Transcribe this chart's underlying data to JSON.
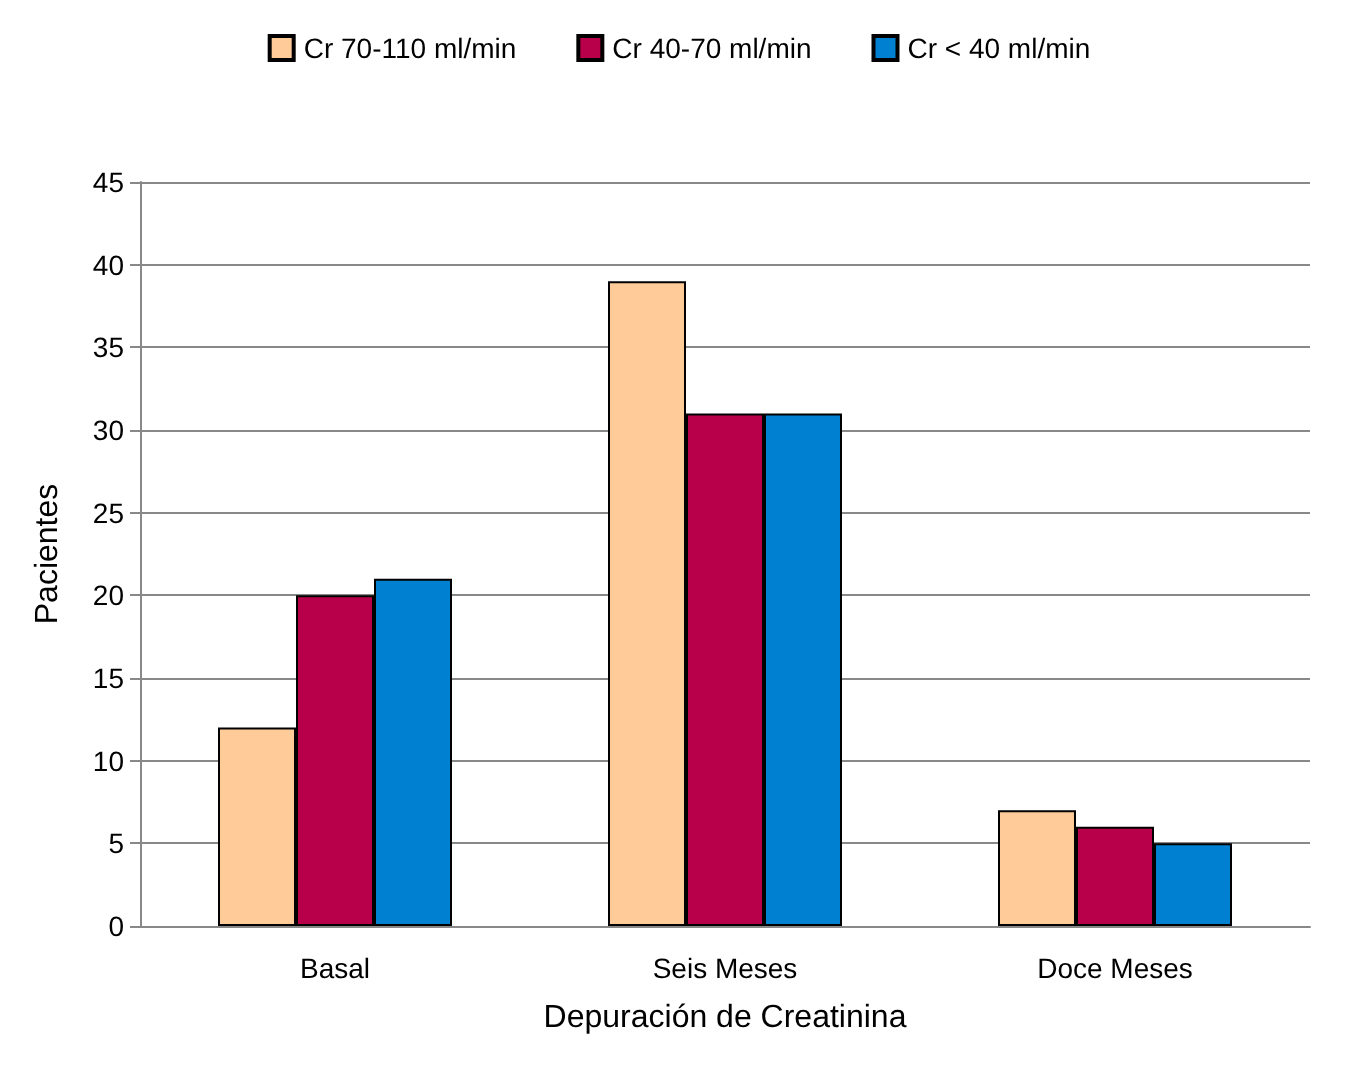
{
  "chart_data": {
    "type": "bar",
    "xlabel": "Depuración de Creatinina",
    "ylabel": "Pacientes",
    "categories": [
      "Basal",
      "Seis Meses",
      "Doce Meses"
    ],
    "series": [
      {
        "name": "Cr 70-110 ml/min",
        "color": "#ffcc99",
        "values": [
          12,
          39,
          7
        ]
      },
      {
        "name": "Cr 40-70 ml/min",
        "color": "#b8004a",
        "values": [
          20,
          31,
          6
        ]
      },
      {
        "name": "Cr < 40 ml/min",
        "color": "#0080d0",
        "values": [
          21,
          31,
          5
        ]
      }
    ],
    "ylim": [
      0,
      45
    ],
    "yticks": [
      0,
      5,
      10,
      15,
      20,
      25,
      30,
      35,
      40,
      45
    ],
    "grid": "y",
    "legend": "top"
  }
}
